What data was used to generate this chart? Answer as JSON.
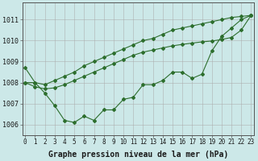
{
  "xlabel": "Graphe pression niveau de la mer (hPa)",
  "background_color": "#cce8e8",
  "grid_color": "#aaaaaa",
  "line_color": "#2d6e2d",
  "hours": [
    0,
    1,
    2,
    3,
    4,
    5,
    6,
    7,
    8,
    9,
    10,
    11,
    12,
    13,
    14,
    15,
    16,
    17,
    18,
    19,
    20,
    21,
    22,
    23
  ],
  "pressure_zigzag": [
    1008.7,
    1008.0,
    1007.5,
    1006.9,
    1006.2,
    1006.1,
    1006.4,
    1006.2,
    1006.7,
    1006.7,
    1007.2,
    1007.3,
    1007.9,
    1007.9,
    1008.1,
    1008.5,
    1008.5,
    1008.2,
    1008.4,
    1009.5,
    1010.2,
    1010.6,
    1011.0,
    1011.2
  ],
  "pressure_upper": [
    1008.0,
    1008.0,
    1007.9,
    1008.1,
    1008.3,
    1008.5,
    1008.8,
    1009.0,
    1009.2,
    1009.4,
    1009.6,
    1009.8,
    1010.0,
    1010.1,
    1010.3,
    1010.5,
    1010.6,
    1010.7,
    1010.8,
    1010.9,
    1011.0,
    1011.1,
    1011.15,
    1011.2
  ],
  "pressure_middle": [
    1008.0,
    1007.8,
    1007.7,
    1007.75,
    1007.9,
    1008.1,
    1008.3,
    1008.5,
    1008.7,
    1008.9,
    1009.1,
    1009.3,
    1009.45,
    1009.55,
    1009.65,
    1009.75,
    1009.82,
    1009.88,
    1009.94,
    1009.98,
    1010.05,
    1010.15,
    1010.5,
    1011.2
  ],
  "ylim": [
    1005.5,
    1011.8
  ],
  "yticks": [
    1006,
    1007,
    1008,
    1009,
    1010,
    1011
  ],
  "xticks": [
    0,
    1,
    2,
    3,
    4,
    5,
    6,
    7,
    8,
    9,
    10,
    11,
    12,
    13,
    14,
    15,
    16,
    17,
    18,
    19,
    20,
    21,
    22,
    23
  ],
  "xlabel_fontsize": 7.0,
  "tick_fontsize": 6.0,
  "xlabel_fontweight": "bold"
}
